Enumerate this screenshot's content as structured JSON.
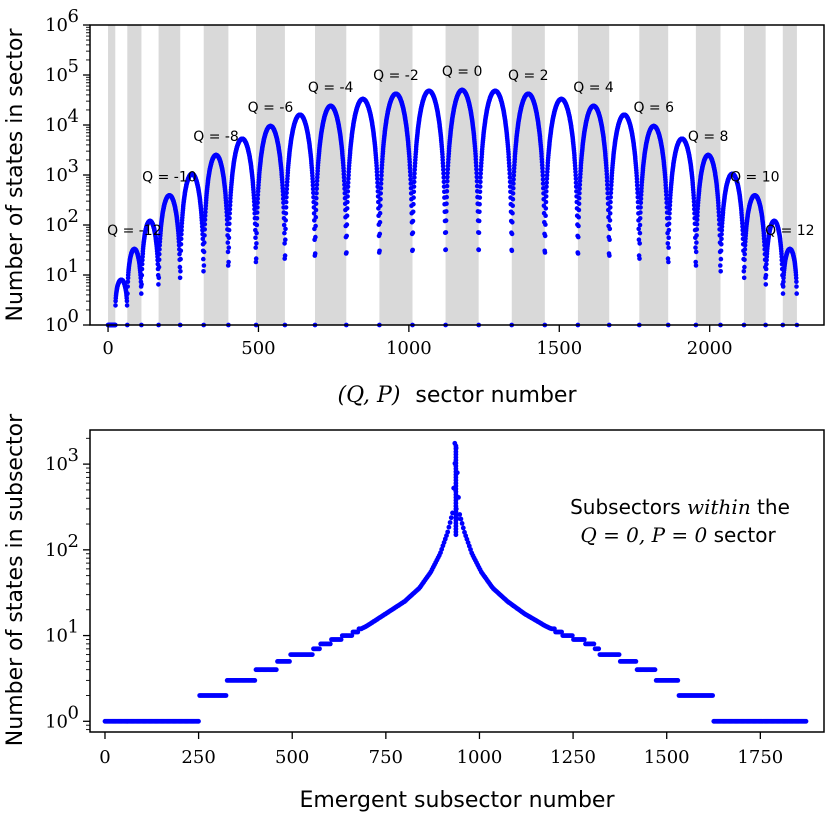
{
  "chart_data": [
    {
      "type": "scatter",
      "ylabel": "Number of states in sector",
      "xlabel_math": "(Q, P)",
      "xlabel_text": "sector number",
      "yscale": "log",
      "ylim": [
        1,
        1000000
      ],
      "xlim": [
        -60,
        2380
      ],
      "xticks": [
        0,
        500,
        1000,
        1500,
        2000
      ],
      "ytick_bases": [
        "10",
        "10",
        "10",
        "10",
        "10",
        "10",
        "10"
      ],
      "ytick_exps": [
        "0",
        "1",
        "2",
        "3",
        "4",
        "5",
        "6"
      ],
      "color": "#0000ff",
      "shade_color": "#d9d9d9",
      "q_sectors": [
        {
          "q": -14,
          "start": 0,
          "end": 24,
          "peak": 1,
          "label": null
        },
        {
          "q": -13,
          "start": 24,
          "end": 64,
          "peak": 8,
          "label": null
        },
        {
          "q": -12,
          "start": 64,
          "end": 111,
          "peak": 33,
          "label": "Q = -12"
        },
        {
          "q": -11,
          "start": 111,
          "end": 168,
          "peak": 120,
          "label": null
        },
        {
          "q": -10,
          "start": 168,
          "end": 240,
          "peak": 390,
          "label": "Q = -10"
        },
        {
          "q": -9,
          "start": 240,
          "end": 318,
          "peak": 1050,
          "label": null
        },
        {
          "q": -8,
          "start": 318,
          "end": 400,
          "peak": 2500,
          "label": "Q = -8"
        },
        {
          "q": -7,
          "start": 400,
          "end": 492,
          "peak": 5300,
          "label": null
        },
        {
          "q": -6,
          "start": 492,
          "end": 588,
          "peak": 9500,
          "label": "Q = -6"
        },
        {
          "q": -5,
          "start": 588,
          "end": 688,
          "peak": 16000,
          "label": null
        },
        {
          "q": -4,
          "start": 688,
          "end": 792,
          "peak": 24000,
          "label": "Q = -4"
        },
        {
          "q": -3,
          "start": 792,
          "end": 902,
          "peak": 33000,
          "label": null
        },
        {
          "q": -2,
          "start": 902,
          "end": 1012,
          "peak": 42000,
          "label": "Q = -2"
        },
        {
          "q": -1,
          "start": 1012,
          "end": 1122,
          "peak": 48000,
          "label": null
        },
        {
          "q": 0,
          "start": 1122,
          "end": 1232,
          "peak": 50000,
          "label": "Q = 0"
        },
        {
          "q": 1,
          "start": 1232,
          "end": 1342,
          "peak": 48000,
          "label": null
        },
        {
          "q": 2,
          "start": 1342,
          "end": 1452,
          "peak": 42000,
          "label": "Q = 2"
        },
        {
          "q": 3,
          "start": 1452,
          "end": 1562,
          "peak": 33000,
          "label": null
        },
        {
          "q": 4,
          "start": 1562,
          "end": 1666,
          "peak": 24000,
          "label": "Q = 4"
        },
        {
          "q": 5,
          "start": 1666,
          "end": 1766,
          "peak": 16000,
          "label": null
        },
        {
          "q": 6,
          "start": 1766,
          "end": 1862,
          "peak": 9500,
          "label": "Q = 6"
        },
        {
          "q": 7,
          "start": 1862,
          "end": 1954,
          "peak": 5300,
          "label": null
        },
        {
          "q": 8,
          "start": 1954,
          "end": 2036,
          "peak": 2500,
          "label": "Q = 8"
        },
        {
          "q": 9,
          "start": 2036,
          "end": 2114,
          "peak": 1050,
          "label": null
        },
        {
          "q": 10,
          "start": 2114,
          "end": 2186,
          "peak": 390,
          "label": "Q = 10"
        },
        {
          "q": 11,
          "start": 2186,
          "end": 2243,
          "peak": 120,
          "label": null
        },
        {
          "q": 12,
          "start": 2243,
          "end": 2290,
          "peak": 33,
          "label": "Q = 12"
        }
      ],
      "shaded_bands": [
        [
          0,
          24
        ],
        [
          64,
          111
        ],
        [
          168,
          240
        ],
        [
          318,
          400
        ],
        [
          492,
          588
        ],
        [
          688,
          792
        ],
        [
          902,
          1012
        ],
        [
          1122,
          1232
        ],
        [
          1342,
          1452
        ],
        [
          1562,
          1666
        ],
        [
          1766,
          1862
        ],
        [
          1954,
          2036
        ],
        [
          2114,
          2186
        ],
        [
          2243,
          2290
        ]
      ]
    },
    {
      "type": "scatter",
      "xlabel": "Emergent subsector number",
      "ylabel": "Number of states in subsector",
      "yscale": "log",
      "ylim": [
        0.75,
        2500
      ],
      "xlim": [
        -40,
        1920
      ],
      "xticks": [
        0,
        250,
        500,
        750,
        1000,
        1250,
        1500,
        1750
      ],
      "ytick_bases": [
        "10",
        "10",
        "10",
        "10"
      ],
      "ytick_exps": [
        "0",
        "1",
        "2",
        "3"
      ],
      "color": "#0000ff",
      "annotation_line1_pre": "Subsectors ",
      "annotation_line1_em": "within",
      "annotation_line1_post": " the",
      "annotation_line2_math": "Q = 0, P = 0",
      "annotation_line2_text": " sector",
      "points": [
        [
          0,
          1
        ],
        [
          250,
          1
        ],
        [
          251,
          2
        ],
        [
          325,
          2
        ],
        [
          326,
          3
        ],
        [
          400,
          3
        ],
        [
          401,
          4
        ],
        [
          460,
          4
        ],
        [
          461,
          5
        ],
        [
          495,
          5
        ],
        [
          496,
          6
        ],
        [
          555,
          6
        ],
        [
          556,
          7
        ],
        [
          590,
          8
        ],
        [
          615,
          9
        ],
        [
          650,
          10
        ],
        [
          700,
          13
        ],
        [
          750,
          18
        ],
        [
          800,
          25
        ],
        [
          840,
          36
        ],
        [
          870,
          55
        ],
        [
          895,
          90
        ],
        [
          915,
          160
        ],
        [
          928,
          270
        ],
        [
          937,
          1750
        ],
        [
          946,
          270
        ],
        [
          960,
          160
        ],
        [
          980,
          90
        ],
        [
          1005,
          55
        ],
        [
          1035,
          36
        ],
        [
          1075,
          25
        ],
        [
          1120,
          18
        ],
        [
          1175,
          13
        ],
        [
          1230,
          10
        ],
        [
          1270,
          9
        ],
        [
          1295,
          8
        ],
        [
          1320,
          7
        ],
        [
          1321,
          6
        ],
        [
          1375,
          6
        ],
        [
          1376,
          5
        ],
        [
          1420,
          5
        ],
        [
          1421,
          4
        ],
        [
          1470,
          4
        ],
        [
          1471,
          3
        ],
        [
          1530,
          3
        ],
        [
          1531,
          2
        ],
        [
          1625,
          2
        ],
        [
          1626,
          1
        ],
        [
          1875,
          1
        ]
      ],
      "spike_values": [
        1750,
        500,
        300,
        230
      ]
    }
  ]
}
